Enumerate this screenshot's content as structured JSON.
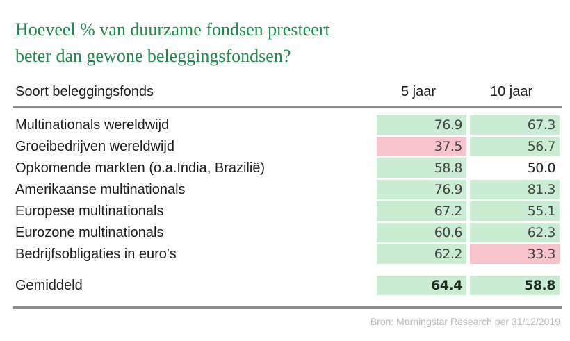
{
  "title_lines": [
    "Hoeveel % van duurzame fondsen presteert",
    "beter dan gewone beleggingsfondsen?"
  ],
  "headers": {
    "fund": "Soort beleggingsfonds",
    "y5": "5 jaar",
    "y10": "10 jaar"
  },
  "colors": {
    "title": "#1f8a4c",
    "positive": "#c9ecd2",
    "negative": "#f7c4cc",
    "neutral": "#ffffff",
    "rule": "#8c8c8c"
  },
  "chart_data": {
    "type": "table",
    "title": "Hoeveel % van duurzame fondsen presteert beter dan gewone beleggingsfondsen?",
    "columns": [
      "Soort beleggingsfonds",
      "5 jaar",
      "10 jaar"
    ],
    "rows": [
      {
        "label": "Multinationals wereldwijd",
        "y5": "76.9",
        "y10": "67.3",
        "y5_color": "green",
        "y10_color": "green"
      },
      {
        "label": "Groeibedrijven wereldwijd",
        "y5": "37.5",
        "y10": "56.7",
        "y5_color": "red",
        "y10_color": "green"
      },
      {
        "label": "Opkomende markten (o.a.India, Brazilië)",
        "y5": "58.8",
        "y10": "50.0",
        "y5_color": "green",
        "y10_color": "white"
      },
      {
        "label": "Amerikaanse multinationals",
        "y5": "76.9",
        "y10": "81.3",
        "y5_color": "green",
        "y10_color": "green"
      },
      {
        "label": "Europese multinationals",
        "y5": "67.2",
        "y10": "55.1",
        "y5_color": "green",
        "y10_color": "green"
      },
      {
        "label": "Eurozone multinationals",
        "y5": "60.6",
        "y10": "62.3",
        "y5_color": "green",
        "y10_color": "green"
      },
      {
        "label": "Bedrijfsobligaties in euro's",
        "y5": "62.2",
        "y10": "33.3",
        "y5_color": "green",
        "y10_color": "red"
      }
    ],
    "average": {
      "label": "Gemiddeld",
      "y5": "64.4",
      "y10": "58.8"
    }
  },
  "source": "Bron: Morningstar Research per 31/12/2019"
}
